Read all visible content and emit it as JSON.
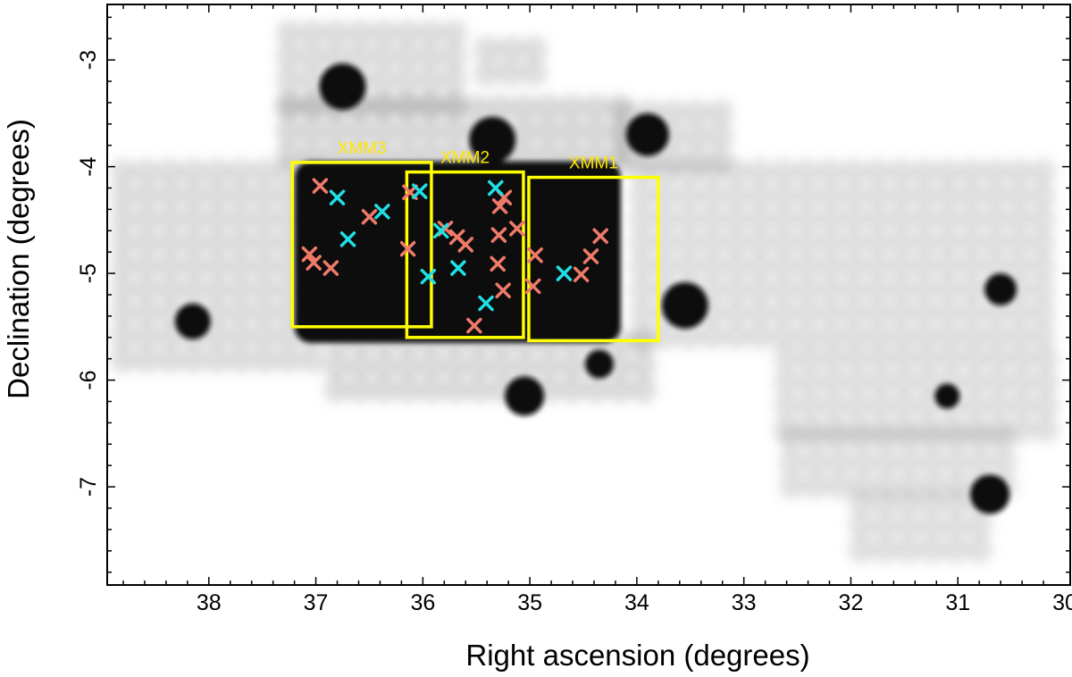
{
  "chart_data": {
    "type": "scatter",
    "title": "",
    "xlabel": "Right ascension (degrees)",
    "ylabel": "Declination (degrees)",
    "xlim": [
      38.95,
      29.95
    ],
    "ylim": [
      -7.92,
      -2.48
    ],
    "x_ticks": [
      {
        "value": 38,
        "label": "38"
      },
      {
        "value": 37,
        "label": "37"
      },
      {
        "value": 36,
        "label": "36"
      },
      {
        "value": 35,
        "label": "35"
      },
      {
        "value": 34,
        "label": "34"
      },
      {
        "value": 33,
        "label": "33"
      },
      {
        "value": 32,
        "label": "32"
      },
      {
        "value": 31,
        "label": "31"
      },
      {
        "value": 30,
        "label": "30"
      }
    ],
    "y_ticks": [
      {
        "value": -3,
        "label": "-3"
      },
      {
        "value": -4,
        "label": "-4"
      },
      {
        "value": -5,
        "label": "-5"
      },
      {
        "value": -6,
        "label": "-6"
      },
      {
        "value": -7,
        "label": "-7"
      }
    ],
    "grid": false,
    "background": "greyscale survey coverage map",
    "fields": [
      {
        "name": "XMM3",
        "ra": [
          37.22,
          35.92
        ],
        "dec": [
          -3.96,
          -5.5
        ]
      },
      {
        "name": "XMM2",
        "ra": [
          36.15,
          35.06
        ],
        "dec": [
          -4.05,
          -5.6
        ]
      },
      {
        "name": "XMM1",
        "ra": [
          35.01,
          33.8
        ],
        "dec": [
          -4.1,
          -5.63
        ]
      }
    ],
    "series": [
      {
        "color": "#f07a6a",
        "points": [
          [
            36.96,
            -4.18
          ],
          [
            36.5,
            -4.47
          ],
          [
            37.06,
            -4.82
          ],
          [
            37.02,
            -4.9
          ],
          [
            36.86,
            -4.95
          ],
          [
            36.12,
            -4.24
          ],
          [
            36.14,
            -4.77
          ],
          [
            35.79,
            -4.58
          ],
          [
            35.68,
            -4.66
          ],
          [
            35.6,
            -4.73
          ],
          [
            35.52,
            -5.49
          ],
          [
            35.24,
            -4.29
          ],
          [
            35.28,
            -4.37
          ],
          [
            35.29,
            -4.64
          ],
          [
            35.3,
            -4.91
          ],
          [
            35.25,
            -5.16
          ],
          [
            35.12,
            -4.58
          ],
          [
            34.95,
            -4.83
          ],
          [
            34.97,
            -5.12
          ],
          [
            34.34,
            -4.65
          ],
          [
            34.43,
            -4.84
          ],
          [
            34.52,
            -5.01
          ]
        ]
      },
      {
        "color": "#1fe0e6",
        "points": [
          [
            36.8,
            -4.29
          ],
          [
            36.38,
            -4.42
          ],
          [
            36.7,
            -4.68
          ],
          [
            36.03,
            -4.23
          ],
          [
            35.95,
            -5.03
          ],
          [
            35.83,
            -4.6
          ],
          [
            35.67,
            -4.95
          ],
          [
            35.41,
            -5.28
          ],
          [
            35.32,
            -4.2
          ],
          [
            34.68,
            -5.0
          ]
        ]
      }
    ]
  }
}
